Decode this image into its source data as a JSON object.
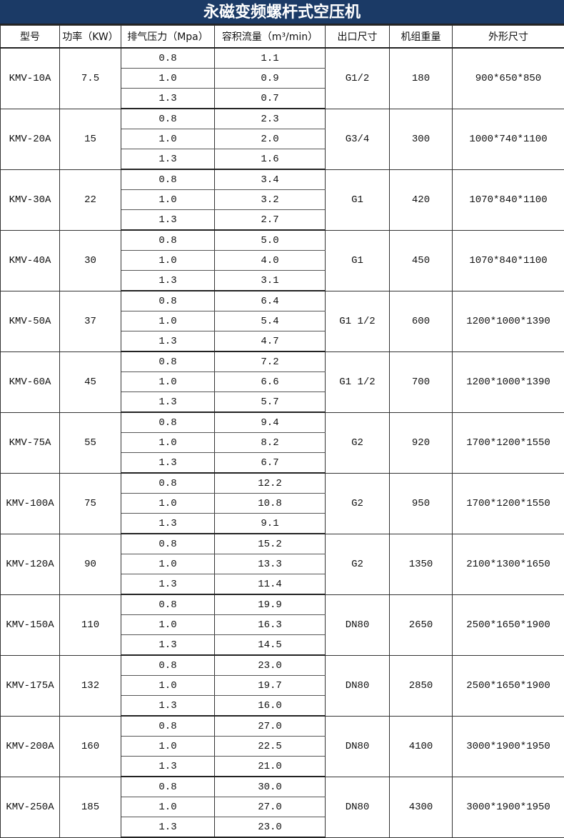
{
  "title": "永磁变频螺杆式空压机",
  "headers": [
    "型号",
    "功率（KW）",
    "排气压力（Mpa）",
    "容积流量（m³/min）",
    "出口尺寸",
    "机组重量",
    "外形尺寸"
  ],
  "pressures": [
    "0.8",
    "1.0",
    "1.3"
  ],
  "rows": [
    {
      "model": "KMV-10A",
      "power": "7.5",
      "flows": [
        "1.1",
        "0.9",
        "0.7"
      ],
      "outlet": "G1/2",
      "weight": "180",
      "size": "900*650*850"
    },
    {
      "model": "KMV-20A",
      "power": "15",
      "flows": [
        "2.3",
        "2.0",
        "1.6"
      ],
      "outlet": "G3/4",
      "weight": "300",
      "size": "1000*740*1100"
    },
    {
      "model": "KMV-30A",
      "power": "22",
      "flows": [
        "3.4",
        "3.2",
        "2.7"
      ],
      "outlet": "G1",
      "weight": "420",
      "size": "1070*840*1100"
    },
    {
      "model": "KMV-40A",
      "power": "30",
      "flows": [
        "5.0",
        "4.0",
        "3.1"
      ],
      "outlet": "G1",
      "weight": "450",
      "size": "1070*840*1100"
    },
    {
      "model": "KMV-50A",
      "power": "37",
      "flows": [
        "6.4",
        "5.4",
        "4.7"
      ],
      "outlet": "G1 1/2",
      "weight": "600",
      "size": "1200*1000*1390"
    },
    {
      "model": "KMV-60A",
      "power": "45",
      "flows": [
        "7.2",
        "6.6",
        "5.7"
      ],
      "outlet": "G1 1/2",
      "weight": "700",
      "size": "1200*1000*1390"
    },
    {
      "model": "KMV-75A",
      "power": "55",
      "flows": [
        "9.4",
        "8.2",
        "6.7"
      ],
      "outlet": "G2",
      "weight": "920",
      "size": "1700*1200*1550"
    },
    {
      "model": "KMV-100A",
      "power": "75",
      "flows": [
        "12.2",
        "10.8",
        "9.1"
      ],
      "outlet": "G2",
      "weight": "950",
      "size": "1700*1200*1550"
    },
    {
      "model": "KMV-120A",
      "power": "90",
      "flows": [
        "15.2",
        "13.3",
        "11.4"
      ],
      "outlet": "G2",
      "weight": "1350",
      "size": "2100*1300*1650"
    },
    {
      "model": "KMV-150A",
      "power": "110",
      "flows": [
        "19.9",
        "16.3",
        "14.5"
      ],
      "outlet": "DN80",
      "weight": "2650",
      "size": "2500*1650*1900"
    },
    {
      "model": "KMV-175A",
      "power": "132",
      "flows": [
        "23.0",
        "19.7",
        "16.0"
      ],
      "outlet": "DN80",
      "weight": "2850",
      "size": "2500*1650*1900"
    },
    {
      "model": "KMV-200A",
      "power": "160",
      "flows": [
        "27.0",
        "22.5",
        "21.0"
      ],
      "outlet": "DN80",
      "weight": "4100",
      "size": "3000*1900*1950"
    },
    {
      "model": "KMV-250A",
      "power": "185",
      "flows": [
        "30.0",
        "27.0",
        "23.0"
      ],
      "outlet": "DN80",
      "weight": "4300",
      "size": "3000*1900*1950"
    }
  ]
}
